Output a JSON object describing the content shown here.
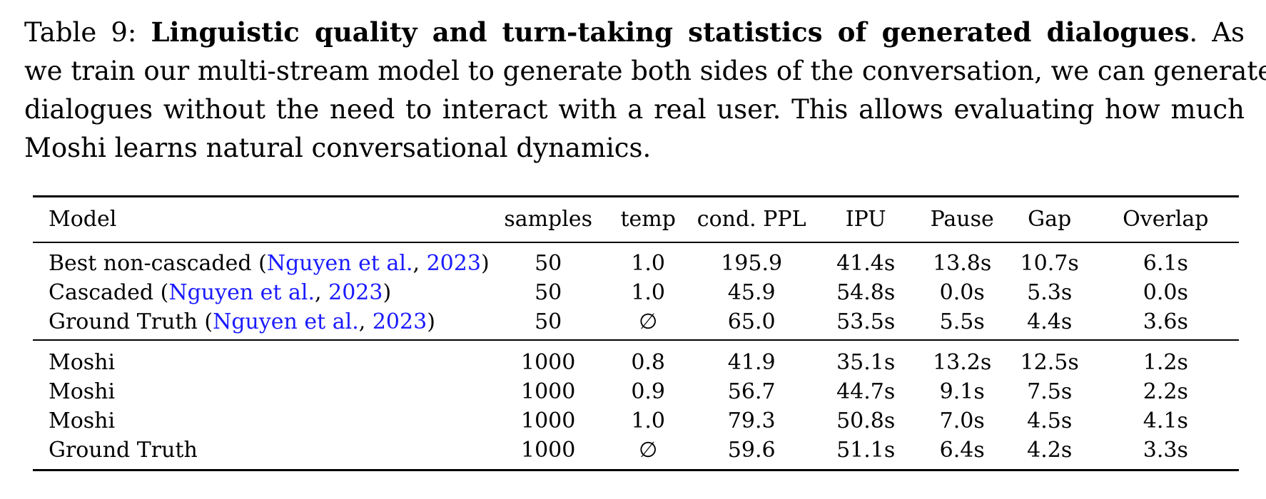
{
  "caption": {
    "label": "Table 9:",
    "title": "Linguistic quality and turn-taking statistics of generated dialogues",
    "text_line1_tail": ". As",
    "text_line2": "we train our multi-stream model to generate both sides of the conversation, we can generate",
    "text_line3": "dialogues without the need to interact with a real user. This allows evaluating how much",
    "text_line4": "Moshi learns natural conversational dynamics."
  },
  "table": {
    "headers": [
      "Model",
      "samples",
      "temp",
      "cond. PPL",
      "IPU",
      "Pause",
      "Gap",
      "Overlap"
    ],
    "group1": [
      {
        "model": "Best non-cascaded",
        "cite_author": "Nguyen et al.",
        "cite_year": "2023",
        "samples": "50",
        "temp": "1.0",
        "ppl": "195.9",
        "ipu": "41.4s",
        "pause": "13.8s",
        "gap": "10.7s",
        "overlap": "6.1s"
      },
      {
        "model": "Cascaded",
        "cite_author": "Nguyen et al.",
        "cite_year": "2023",
        "samples": "50",
        "temp": "1.0",
        "ppl": "45.9",
        "ipu": "54.8s",
        "pause": "0.0s",
        "gap": "5.3s",
        "overlap": "0.0s"
      },
      {
        "model": "Ground Truth",
        "cite_author": "Nguyen et al.",
        "cite_year": "2023",
        "samples": "50",
        "temp": "∅",
        "ppl": "65.0",
        "ipu": "53.5s",
        "pause": "5.5s",
        "gap": "4.4s",
        "overlap": "3.6s"
      }
    ],
    "group2": [
      {
        "model": "Moshi",
        "samples": "1000",
        "temp": "0.8",
        "ppl": "41.9",
        "ipu": "35.1s",
        "pause": "13.2s",
        "gap": "12.5s",
        "overlap": "1.2s"
      },
      {
        "model": "Moshi",
        "samples": "1000",
        "temp": "0.9",
        "ppl": "56.7",
        "ipu": "44.7s",
        "pause": "9.1s",
        "gap": "7.5s",
        "overlap": "2.2s"
      },
      {
        "model": "Moshi",
        "samples": "1000",
        "temp": "1.0",
        "ppl": "79.3",
        "ipu": "50.8s",
        "pause": "7.0s",
        "gap": "4.5s",
        "overlap": "4.1s"
      },
      {
        "model": "Ground Truth",
        "samples": "1000",
        "temp": "∅",
        "ppl": "59.6",
        "ipu": "51.1s",
        "pause": "6.4s",
        "gap": "4.2s",
        "overlap": "3.3s"
      }
    ]
  },
  "colors": {
    "citation": "#1a1aff",
    "text": "#000000"
  }
}
